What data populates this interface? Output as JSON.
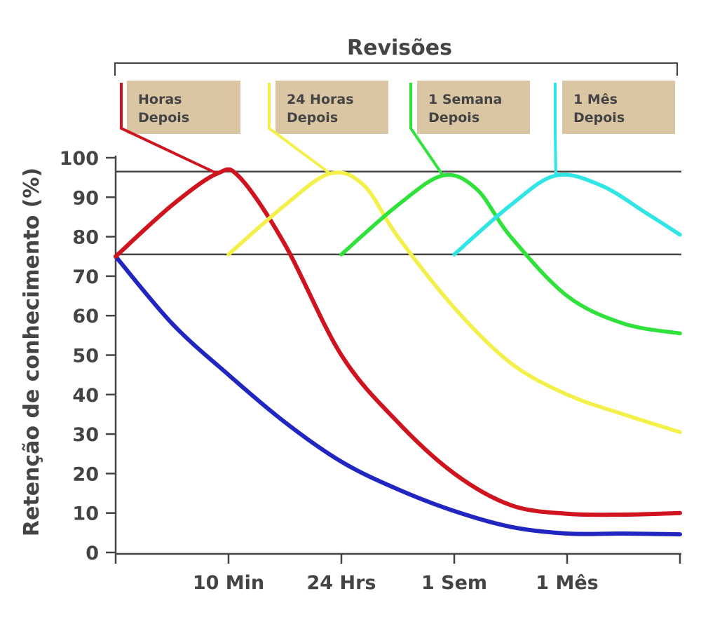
{
  "chart_data": {
    "type": "line",
    "title": "",
    "ylabel": "Retenção de conhecimento (%)",
    "xlabel": "",
    "ylim": [
      0,
      100
    ],
    "yticks": [
      0,
      10,
      20,
      30,
      40,
      50,
      60,
      70,
      80,
      90,
      100
    ],
    "xticks": [
      "10 Min",
      "24 Hrs",
      "1 Sem",
      "1 Mês"
    ],
    "reference_lines": [
      96.5,
      75.5
    ],
    "grid": false,
    "revisions": {
      "title": "Revisões",
      "boxes": [
        {
          "line1": "Horas",
          "line2": "Depois",
          "color": "#d0141f"
        },
        {
          "line1": "24 Horas",
          "line2": "Depois",
          "color": "#f3f04a"
        },
        {
          "line1": "1 Semana",
          "line2": "Depois",
          "color": "#2ee23a"
        },
        {
          "line1": "1 Mês",
          "line2": "Depois",
          "color": "#2fe5e5"
        }
      ]
    },
    "series": [
      {
        "color": "#2226c0",
        "points": [
          [
            0,
            75
          ],
          [
            0.5,
            58
          ],
          [
            1,
            45
          ],
          [
            1.5,
            33
          ],
          [
            2,
            23
          ],
          [
            2.5,
            16
          ],
          [
            3,
            10.5
          ],
          [
            3.5,
            6.5
          ],
          [
            4,
            4.8
          ],
          [
            4.5,
            4.8
          ],
          [
            5,
            4.6
          ]
        ]
      },
      {
        "color": "#d0141f",
        "points": [
          [
            0,
            75
          ],
          [
            0.5,
            88
          ],
          [
            0.9,
            96
          ],
          [
            1.1,
            95
          ],
          [
            1.5,
            78
          ],
          [
            2,
            50
          ],
          [
            2.5,
            33
          ],
          [
            3,
            20
          ],
          [
            3.5,
            12
          ],
          [
            4,
            9.8
          ],
          [
            4.5,
            9.6
          ],
          [
            5,
            10
          ]
        ]
      },
      {
        "color": "#f3f04a",
        "points": [
          [
            1,
            75.5
          ],
          [
            1.5,
            88
          ],
          [
            1.9,
            96
          ],
          [
            2.2,
            93
          ],
          [
            2.5,
            80
          ],
          [
            3,
            62
          ],
          [
            3.5,
            48
          ],
          [
            4,
            40
          ],
          [
            4.5,
            35
          ],
          [
            5,
            30.5
          ]
        ]
      },
      {
        "color": "#2ee23a",
        "points": [
          [
            2,
            75.5
          ],
          [
            2.5,
            88
          ],
          [
            2.9,
            95.5
          ],
          [
            3.2,
            92
          ],
          [
            3.5,
            80
          ],
          [
            4,
            65
          ],
          [
            4.5,
            58
          ],
          [
            5,
            55.5
          ]
        ]
      },
      {
        "color": "#2fe5e5",
        "points": [
          [
            3,
            75.5
          ],
          [
            3.5,
            88
          ],
          [
            3.9,
            95.5
          ],
          [
            4.3,
            93
          ],
          [
            4.7,
            86
          ],
          [
            5,
            80.5
          ]
        ]
      }
    ]
  }
}
